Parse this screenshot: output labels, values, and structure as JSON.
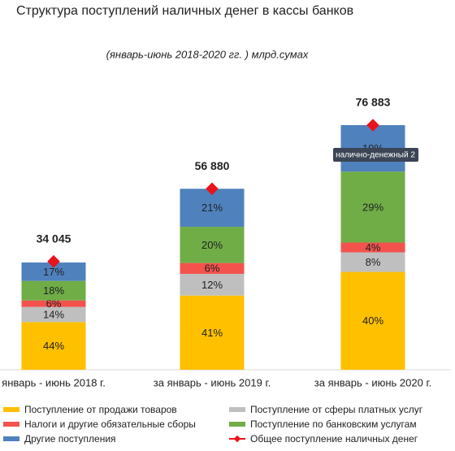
{
  "chart_data": {
    "type": "stacked-bar",
    "title": "Структура поступлений наличных денег в кассы банков",
    "subtitle": "(январь-июнь 2018-2020 гг. ) млрд.сумах",
    "categories": [
      "январь - июнь 2018 г.",
      "за январь - июнь 2019 г.",
      "за январь - июнь 2020 г."
    ],
    "series": [
      {
        "name": "Поступление от продажи товаров",
        "color": "#FFC000",
        "values": [
          44,
          41,
          40
        ]
      },
      {
        "name": "Поступление от сферы платных услуг",
        "color": "#BFBFBF",
        "values": [
          14,
          12,
          8
        ]
      },
      {
        "name": "Налоги и другие обязательные сборы",
        "color": "#F4524D",
        "values": [
          6,
          6,
          4
        ]
      },
      {
        "name": "Поступление по банковским услугам",
        "color": "#70AD47",
        "values": [
          18,
          20,
          29
        ]
      },
      {
        "name": "Другие поступления",
        "color": "#4F81BD",
        "values": [
          17,
          21,
          19
        ]
      }
    ],
    "totals": {
      "name": "Общее поступление наличных денег",
      "color": "#E8141B",
      "values": [
        34045,
        56880,
        76883
      ],
      "value_labels": [
        "34 045",
        "56 880",
        "76 883"
      ]
    },
    "tooltip": "налично-денежный 2"
  }
}
